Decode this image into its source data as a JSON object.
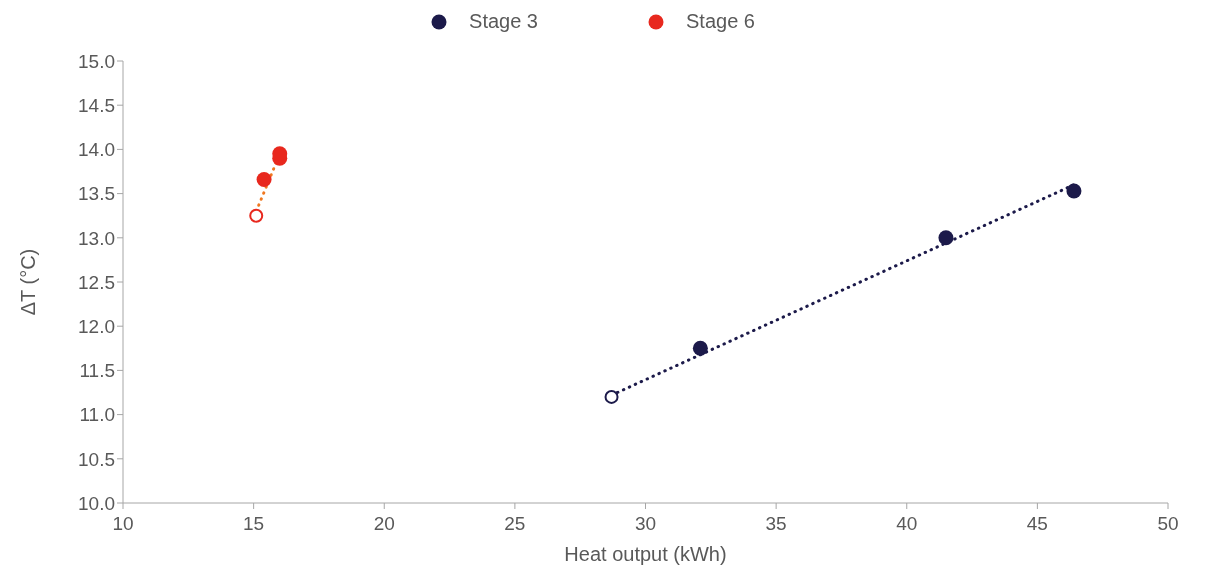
{
  "chart_data": {
    "type": "scatter",
    "xlabel": "Heat output (kWh)",
    "ylabel": "ΔT (°C)",
    "xlim": [
      10,
      50
    ],
    "xticks": [
      10,
      15,
      20,
      25,
      30,
      35,
      40,
      45,
      50
    ],
    "ylim": [
      10,
      15
    ],
    "yticks": [
      {
        "value": 10,
        "label": "10.0"
      },
      {
        "value": 10.5,
        "label": "10.5"
      },
      {
        "value": 11,
        "label": "11.0"
      },
      {
        "value": 11.5,
        "label": "11.5"
      },
      {
        "value": 12,
        "label": "12.0"
      },
      {
        "value": 12.5,
        "label": "12.5"
      },
      {
        "value": 13,
        "label": "13.0"
      },
      {
        "value": 13.5,
        "label": "13.5"
      },
      {
        "value": 14,
        "label": "14.0"
      },
      {
        "value": 14.5,
        "label": "14.5"
      },
      {
        "value": 15,
        "label": "15.0"
      }
    ],
    "grid": false,
    "legend": "top",
    "marker": "circle",
    "series": [
      {
        "name": "Stage 3",
        "color": "#1c1a4a",
        "x": [
          32.1,
          41.5,
          46.4
        ],
        "values": [
          11.75,
          13.0,
          13.53
        ]
      },
      {
        "name": "Stage 6",
        "color": "#e8281e",
        "x": [
          15.4,
          16.0,
          16.0
        ],
        "values": [
          13.66,
          13.9,
          13.95
        ]
      },
      {
        "type": "scatter",
        "color": "#1c1a4a",
        "x": [
          28.7
        ],
        "values": [
          11.2
        ]
      },
      {
        "type": "scatter",
        "color": "#e8281e",
        "x": [
          15.1
        ],
        "values": [
          13.25
        ]
      },
      {
        "type": "line",
        "color": "#1c1a4a",
        "line_style": "dotted",
        "marker": "none",
        "x": [
          28.7,
          46.4
        ],
        "values": [
          11.22,
          13.6
        ]
      },
      {
        "type": "line",
        "color": "#f07820",
        "line_style": "dotted",
        "marker": "none",
        "x": [
          15.1,
          16.1
        ],
        "values": [
          13.3,
          14.02
        ]
      }
    ]
  }
}
